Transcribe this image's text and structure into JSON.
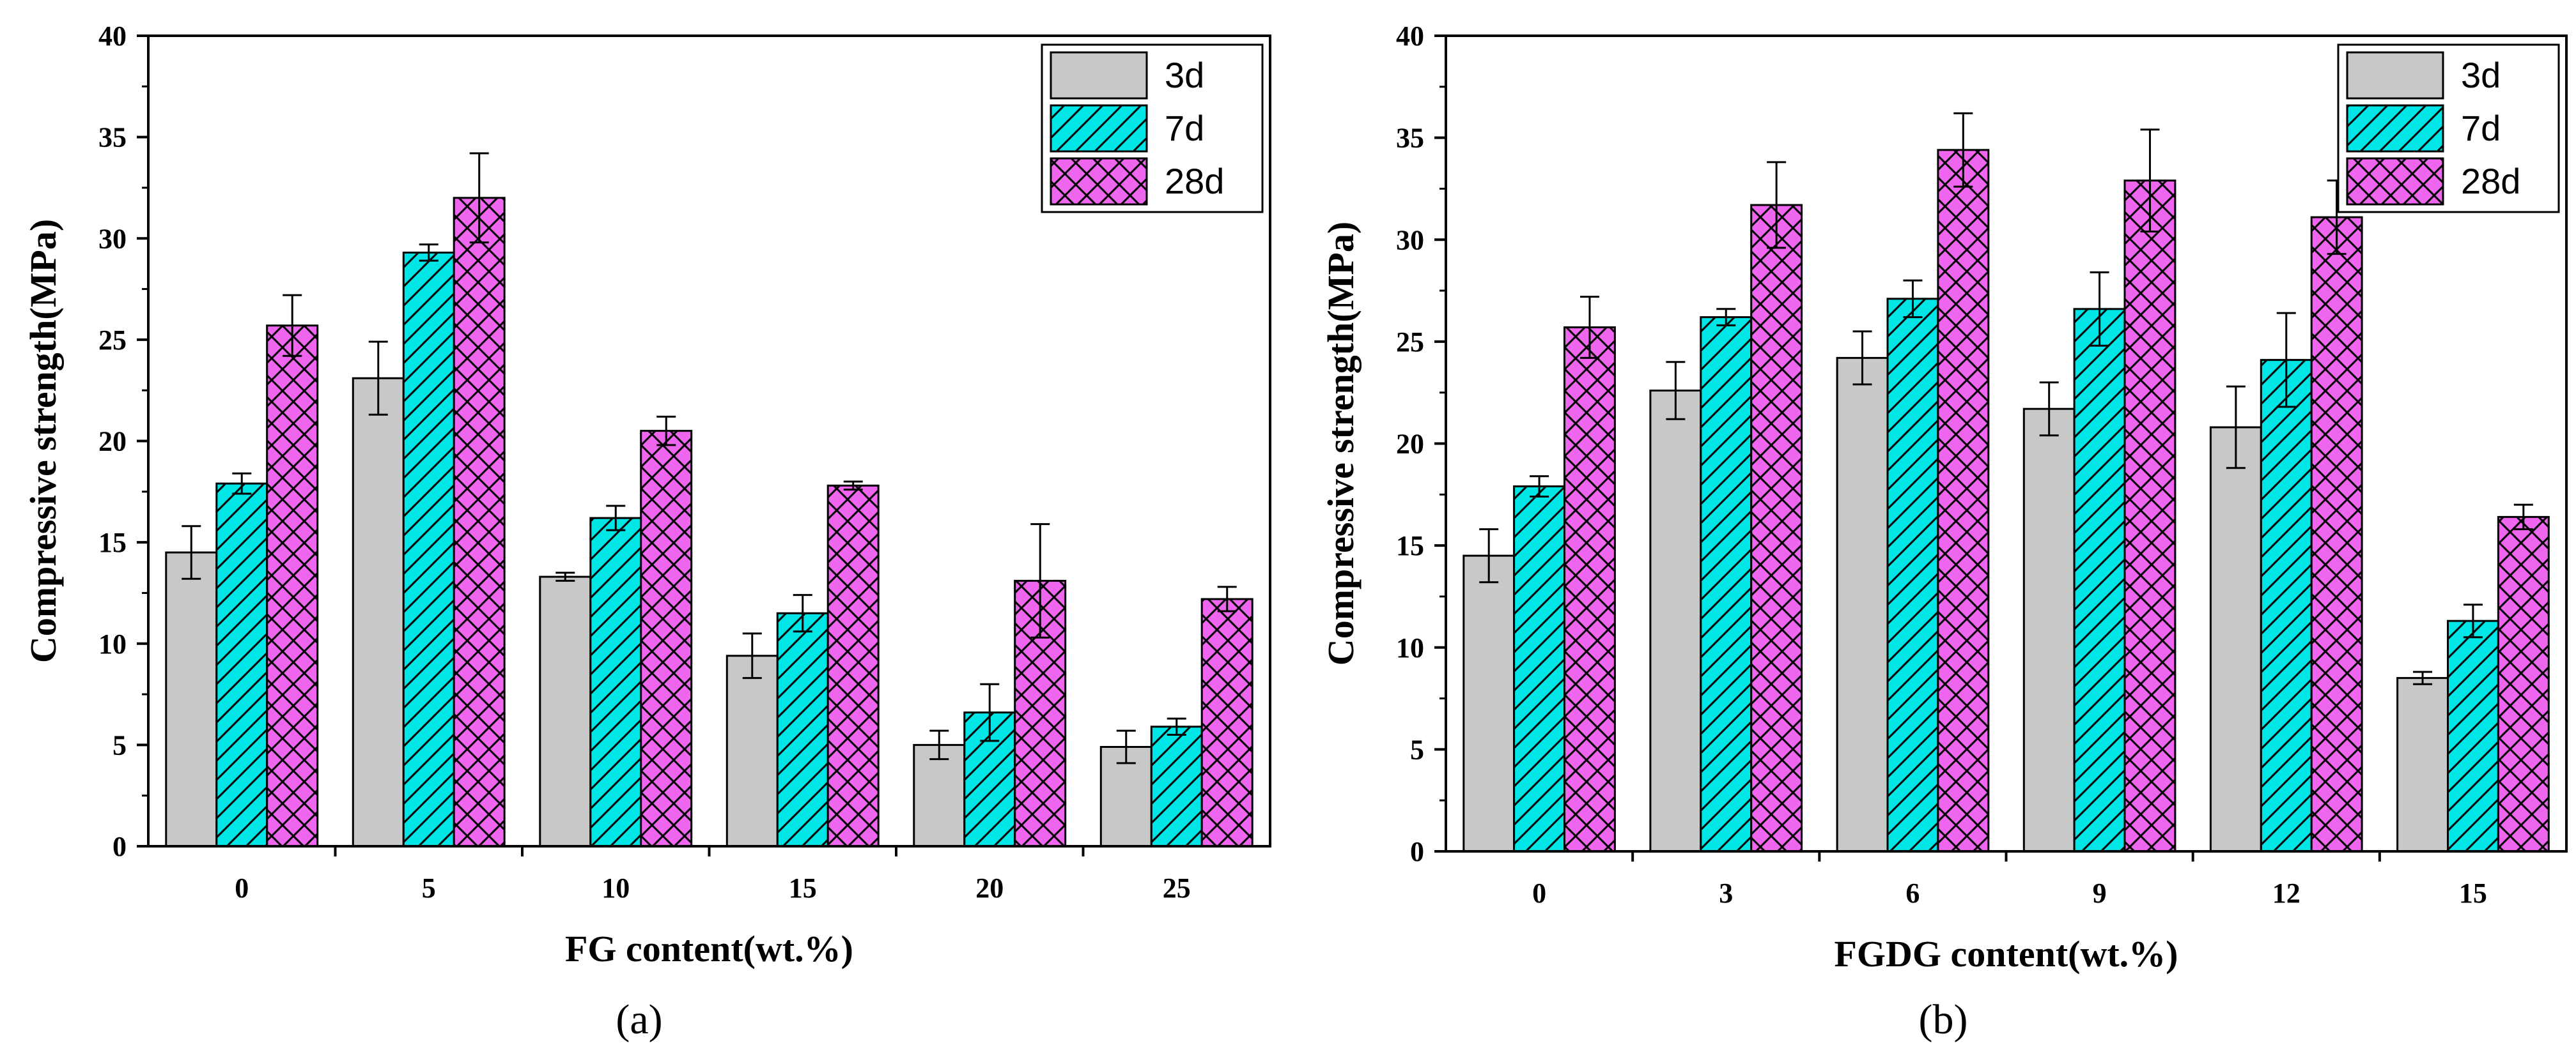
{
  "colors": {
    "3d": "#c8c8c8",
    "7d": "#00e5e5",
    "28d": "#ee66ee",
    "axis": "#000000"
  },
  "chart_data": [
    {
      "type": "bar",
      "caption": "(a)",
      "xlabel": "FG content(wt.%)",
      "ylabel": "Compressive strength(MPa)",
      "ylim": [
        0,
        40
      ],
      "yticks": [
        "0",
        "5",
        "10",
        "15",
        "20",
        "25",
        "30",
        "35",
        "40"
      ],
      "categories": [
        "0",
        "5",
        "10",
        "15",
        "20",
        "25"
      ],
      "legend_position": "top-right",
      "series": [
        {
          "name": "3d",
          "values": [
            14.5,
            23.1,
            13.3,
            9.4,
            5.0,
            4.9
          ],
          "errors": [
            1.3,
            1.8,
            0.2,
            1.1,
            0.7,
            0.8
          ]
        },
        {
          "name": "7d",
          "values": [
            17.9,
            29.3,
            16.2,
            11.5,
            6.6,
            5.9
          ],
          "errors": [
            0.5,
            0.4,
            0.6,
            0.9,
            1.4,
            0.4
          ]
        },
        {
          "name": "28d",
          "values": [
            25.7,
            32.0,
            20.5,
            17.8,
            13.1,
            12.2
          ],
          "errors": [
            1.5,
            2.2,
            0.7,
            0.2,
            2.8,
            0.6
          ]
        }
      ]
    },
    {
      "type": "bar",
      "caption": "(b)",
      "xlabel": "FGDG content(wt.%)",
      "ylabel": "Compressive strength(MPa)",
      "ylim": [
        0,
        40
      ],
      "yticks": [
        "0",
        "5",
        "10",
        "15",
        "20",
        "25",
        "30",
        "35",
        "40"
      ],
      "categories": [
        "0",
        "3",
        "6",
        "9",
        "12",
        "15"
      ],
      "legend_position": "top-right",
      "series": [
        {
          "name": "3d",
          "values": [
            14.5,
            22.6,
            24.2,
            21.7,
            20.8,
            8.5
          ],
          "errors": [
            1.3,
            1.4,
            1.3,
            1.3,
            2.0,
            0.3
          ]
        },
        {
          "name": "7d",
          "values": [
            17.9,
            26.2,
            27.1,
            26.6,
            24.1,
            11.3
          ],
          "errors": [
            0.5,
            0.4,
            0.9,
            1.8,
            2.3,
            0.8
          ]
        },
        {
          "name": "28d",
          "values": [
            25.7,
            31.7,
            34.4,
            32.9,
            31.1,
            16.4
          ],
          "errors": [
            1.5,
            2.1,
            1.8,
            2.5,
            1.8,
            0.6
          ]
        }
      ]
    }
  ]
}
